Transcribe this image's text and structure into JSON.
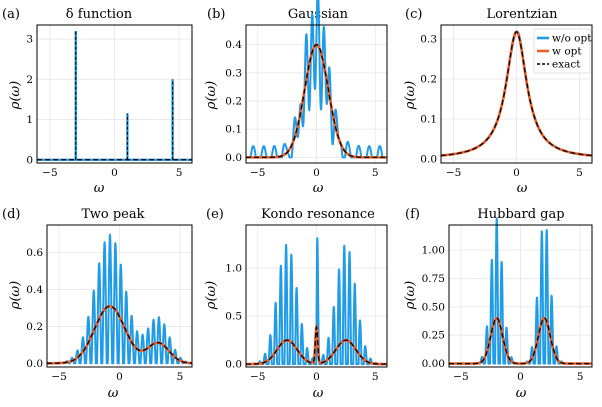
{
  "colors": {
    "wo_opt": "#1f9be8",
    "w_opt": "#e8602c",
    "exact": "#000000",
    "grid": "#e6e6e6",
    "frame": "#000000"
  },
  "chart_data": [
    {
      "type": "line",
      "panel": "(a)",
      "title": "δ function",
      "xlabel": "ω",
      "ylabel": "ρ(ω)",
      "xlim": [
        -6,
        6
      ],
      "ylim": [
        -0.08,
        3.35
      ],
      "xticks": [
        -5,
        0,
        5
      ],
      "yticks": [
        0,
        1,
        2,
        3
      ],
      "model": "delta",
      "deltas": [
        [
          -3,
          3.2
        ],
        [
          1,
          1.15
        ],
        [
          4.5,
          2.0
        ]
      ],
      "series": [
        {
          "name": "w/o opt"
        },
        {
          "name": "w opt"
        },
        {
          "name": "exact"
        }
      ]
    },
    {
      "type": "line",
      "panel": "(b)",
      "title": "Gaussian",
      "xlabel": "ω",
      "ylabel": "ρ(ω)",
      "xlim": [
        -6,
        6
      ],
      "ylim": [
        -0.02,
        0.47
      ],
      "xticks": [
        -5,
        0,
        5
      ],
      "yticks": [
        0.0,
        0.1,
        0.2,
        0.3,
        0.4
      ],
      "model": "gauss",
      "components": [
        [
          0,
          1.0,
          0.4
        ]
      ],
      "osc": [
        0.45,
        0.5,
        0.04
      ],
      "series": [
        {
          "name": "w/o opt"
        },
        {
          "name": "w opt"
        },
        {
          "name": "exact"
        }
      ]
    },
    {
      "type": "line",
      "panel": "(c)",
      "title": "Lorentzian",
      "xlabel": "ω",
      "ylabel": "ρ(ω)",
      "xlim": [
        -6,
        6
      ],
      "ylim": [
        -0.01,
        0.335
      ],
      "xticks": [
        -5,
        0,
        5
      ],
      "yticks": [
        0.0,
        0.1,
        0.2,
        0.3
      ],
      "model": "lorentz",
      "lorentz": [
        0,
        1.0,
        0.318
      ],
      "osc": [
        0.02,
        1.2,
        0.0
      ],
      "legend": "top-right",
      "series": [
        {
          "name": "w/o opt"
        },
        {
          "name": "w opt"
        },
        {
          "name": "exact"
        }
      ]
    },
    {
      "type": "line",
      "panel": "(d)",
      "title": "Two peak",
      "xlabel": "ω",
      "ylabel": "ρ(ω)",
      "xlim": [
        -6,
        6
      ],
      "ylim": [
        -0.02,
        0.75
      ],
      "xticks": [
        -5,
        0,
        5
      ],
      "yticks": [
        0.0,
        0.2,
        0.4,
        0.6
      ],
      "model": "gauss",
      "components": [
        [
          -0.8,
          1.25,
          0.31
        ],
        [
          3.2,
          0.9,
          0.11
        ]
      ],
      "osc": [
        1.25,
        0.45,
        0.0
      ],
      "series": [
        {
          "name": "w/o opt"
        },
        {
          "name": "w opt"
        },
        {
          "name": "exact"
        }
      ]
    },
    {
      "type": "line",
      "panel": "(e)",
      "title": "Kondo resonance",
      "xlabel": "ω",
      "ylabel": "ρ(ω)",
      "xlim": [
        -6,
        6
      ],
      "ylim": [
        -0.03,
        1.45
      ],
      "xticks": [
        -5,
        0,
        5
      ],
      "yticks": [
        0.0,
        0.5,
        1.0
      ],
      "model": "gauss",
      "components": [
        [
          -2.5,
          0.85,
          0.25
        ],
        [
          2.5,
          0.85,
          0.25
        ],
        [
          0,
          0.1,
          0.38
        ]
      ],
      "osc": [
        4.0,
        0.45,
        0.0
      ],
      "series": [
        {
          "name": "w/o opt"
        },
        {
          "name": "w opt"
        },
        {
          "name": "exact"
        }
      ]
    },
    {
      "type": "line",
      "panel": "(f)",
      "title": "Hubbard gap",
      "xlabel": "ω",
      "ylabel": "ρ(ω)",
      "xlim": [
        -6,
        6
      ],
      "ylim": [
        -0.03,
        1.22
      ],
      "xticks": [
        -5,
        0,
        5
      ],
      "yticks": [
        0.0,
        0.25,
        0.5,
        0.75,
        1.0
      ],
      "model": "gauss",
      "components": [
        [
          -2.0,
          0.5,
          0.4
        ],
        [
          2.0,
          0.5,
          0.4
        ]
      ],
      "osc": [
        2.2,
        0.42,
        0.0
      ],
      "series": [
        {
          "name": "w/o opt"
        },
        {
          "name": "w opt"
        },
        {
          "name": "exact"
        }
      ]
    }
  ]
}
